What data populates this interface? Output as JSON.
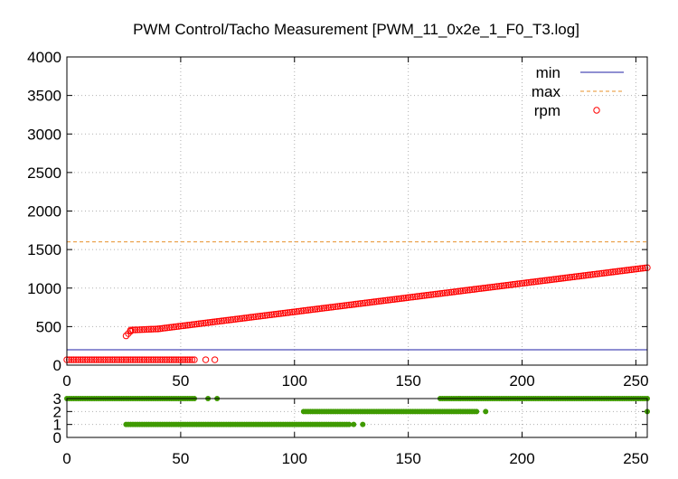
{
  "title": "PWM Control/Tacho Measurement [PWM_11_0x2e_1_F0_T3.log]",
  "colors": {
    "rpm": "#ff0000",
    "min": "#1f1fa6",
    "max": "#e8902a",
    "state": "#3f9a00",
    "grid": "#b0b0b0"
  },
  "chart_data": [
    {
      "type": "scatter",
      "title": "PWM Control/Tacho Measurement [PWM_11_0x2e_1_F0_T3.log]",
      "xlabel": "",
      "ylabel": "",
      "xlim": [
        0,
        255
      ],
      "ylim": [
        0,
        4000
      ],
      "xticks": [
        0,
        50,
        100,
        150,
        200,
        250
      ],
      "yticks": [
        0,
        500,
        1000,
        1500,
        2000,
        2500,
        3000,
        3500,
        4000
      ],
      "grid": true,
      "legend_position": "top-right",
      "series": [
        {
          "name": "min",
          "style": "line",
          "y": 200
        },
        {
          "name": "max",
          "style": "dashed-line",
          "y": 1600
        },
        {
          "name": "rpm",
          "style": "open-circles",
          "segments": [
            {
              "x_start": 0,
              "x_end": 56,
              "y_start": 70,
              "y_end": 70
            },
            {
              "x_start": 26,
              "x_end": 28,
              "y_start": 380,
              "y_end": 440
            },
            {
              "x_start": 28,
              "x_end": 40,
              "y_start": 455,
              "y_end": 470
            },
            {
              "x_start": 40,
              "x_end": 255,
              "y_start": 470,
              "y_end": 1265
            }
          ],
          "sparse_points": [
            {
              "x": 61,
              "y": 70
            },
            {
              "x": 65,
              "y": 70
            }
          ]
        }
      ]
    },
    {
      "type": "scatter",
      "xlim": [
        0,
        255
      ],
      "ylim": [
        0,
        3
      ],
      "xticks": [
        0,
        50,
        100,
        150,
        200,
        250
      ],
      "yticks": [
        0,
        1,
        2,
        3
      ],
      "grid": true,
      "series": [
        {
          "name": "",
          "style": "filled-dots",
          "segments": [
            {
              "x_start": 0,
              "x_end": 56,
              "y": 3
            },
            {
              "x_start": 26,
              "x_end": 124,
              "y": 1
            },
            {
              "x_start": 104,
              "x_end": 180,
              "y": 2
            },
            {
              "x_start": 164,
              "x_end": 255,
              "y": 3
            },
            {
              "x_start": 255,
              "x_end": 255,
              "y": 2
            }
          ],
          "sparse_points": [
            {
              "x": 62,
              "y": 3
            },
            {
              "x": 66,
              "y": 3
            },
            {
              "x": 126,
              "y": 1
            },
            {
              "x": 130,
              "y": 1
            },
            {
              "x": 184,
              "y": 2
            }
          ]
        }
      ]
    }
  ]
}
